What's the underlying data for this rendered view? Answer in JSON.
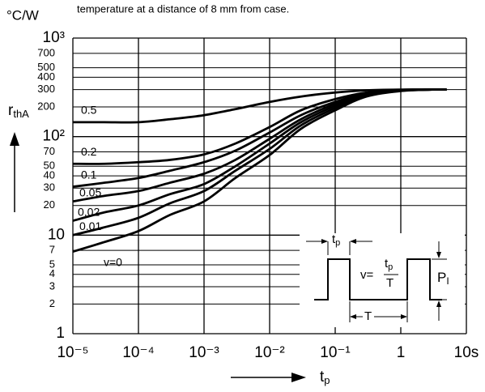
{
  "chart_data": {
    "type": "line",
    "annotation": "temperature at a distance of 8 mm from case.",
    "y_unit": "°C/W",
    "ylabel": {
      "main": "r",
      "sub": "thA"
    },
    "xlabel": {
      "main": "t",
      "sub": "p"
    },
    "x": [
      1e-05,
      3e-05,
      0.0001,
      0.0003,
      0.001,
      0.003,
      0.01,
      0.03,
      0.1,
      0.3,
      1,
      3,
      5
    ],
    "series": [
      {
        "name": "0.5",
        "color": "#000000",
        "values": [
          140,
          140,
          140,
          150,
          165,
          190,
          225,
          255,
          280,
          295,
          300,
          300,
          300
        ]
      },
      {
        "name": "0.2",
        "color": "#000000",
        "values": [
          53,
          53,
          55,
          58,
          66,
          85,
          125,
          185,
          240,
          280,
          298,
          300,
          300
        ]
      },
      {
        "name": "0.1",
        "color": "#000000",
        "values": [
          31,
          34,
          38,
          45,
          55,
          72,
          110,
          165,
          225,
          275,
          296,
          300,
          300
        ]
      },
      {
        "name": "0.05",
        "color": "#000000",
        "values": [
          22,
          25,
          28,
          34,
          42,
          58,
          95,
          150,
          215,
          270,
          295,
          300,
          300
        ]
      },
      {
        "name": "0.02",
        "color": "#000000",
        "values": [
          14,
          17,
          20,
          26,
          33,
          50,
          85,
          140,
          205,
          265,
          293,
          300,
          300
        ]
      },
      {
        "name": "0.01",
        "color": "#000000",
        "values": [
          10,
          12,
          15,
          21,
          28,
          45,
          75,
          130,
          195,
          260,
          292,
          300,
          300
        ]
      },
      {
        "name": "v=0",
        "color": "#000000",
        "values": [
          6.8,
          8.5,
          11,
          16,
          22,
          38,
          65,
          120,
          185,
          255,
          290,
          300,
          300
        ]
      }
    ],
    "xlim": [
      1e-05,
      10
    ],
    "ylim": [
      1,
      1000
    ],
    "log_x": true,
    "log_y": true,
    "grid": true,
    "xticks": [
      {
        "value": 1e-05,
        "label": "10⁻⁵"
      },
      {
        "value": 0.0001,
        "label": "10⁻⁴"
      },
      {
        "value": 0.001,
        "label": "10⁻³"
      },
      {
        "value": 0.01,
        "label": "10⁻²"
      },
      {
        "value": 0.1,
        "label": "10⁻¹"
      },
      1,
      {
        "value": 10,
        "label": "10s"
      }
    ],
    "yticks": [
      1,
      2,
      3,
      4,
      5,
      7,
      10,
      20,
      30,
      40,
      50,
      70,
      {
        "value": 100,
        "label": "10²"
      },
      200,
      300,
      400,
      500,
      700,
      {
        "value": 1000,
        "label": "10³"
      }
    ],
    "inset": {
      "tp_main": "t",
      "tp_sub": "p",
      "v_eq": "v=",
      "frac_num_main": "t",
      "frac_num_sub": "p",
      "frac_den": "T",
      "period": "T",
      "power_main": "P",
      "power_sub": "I"
    }
  }
}
